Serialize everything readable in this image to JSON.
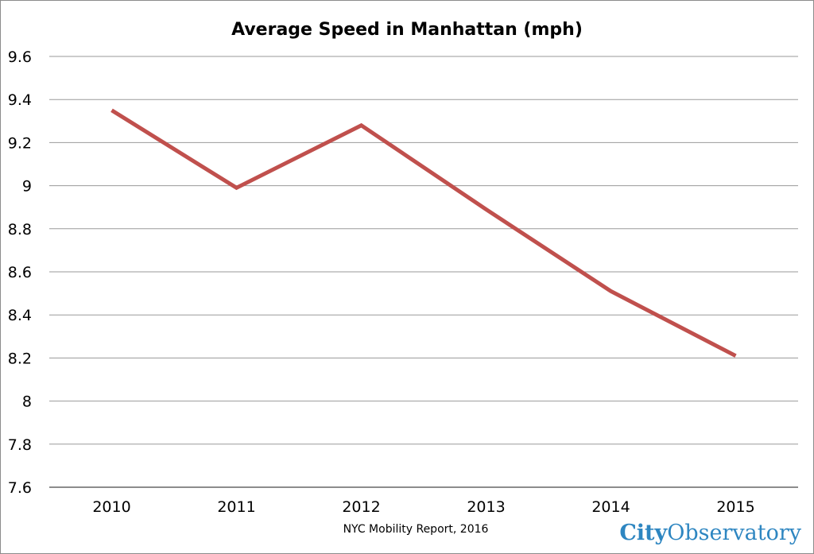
{
  "chart_data": {
    "type": "line",
    "title": "Average Speed in Manhattan (mph)",
    "xlabel": "",
    "ylabel": "",
    "categories": [
      "2010",
      "2011",
      "2012",
      "2013",
      "2014",
      "2015"
    ],
    "series": [
      {
        "values": [
          9.35,
          8.99,
          9.28,
          8.89,
          8.51,
          8.21
        ],
        "color": "#c0504d"
      }
    ],
    "ylim": [
      7.6,
      9.6
    ],
    "yticks": [
      "7.6",
      "7.8",
      "8",
      "8.2",
      "8.4",
      "8.6",
      "8.8",
      "9",
      "9.2",
      "9.4",
      "9.6"
    ],
    "grid": true,
    "legend": "none"
  },
  "source_note": "NYC Mobility Report, 2016",
  "brand": {
    "part1": "City",
    "part2": "Observatory",
    "color1": "#2e86c1",
    "color2": "#2e86c1"
  }
}
